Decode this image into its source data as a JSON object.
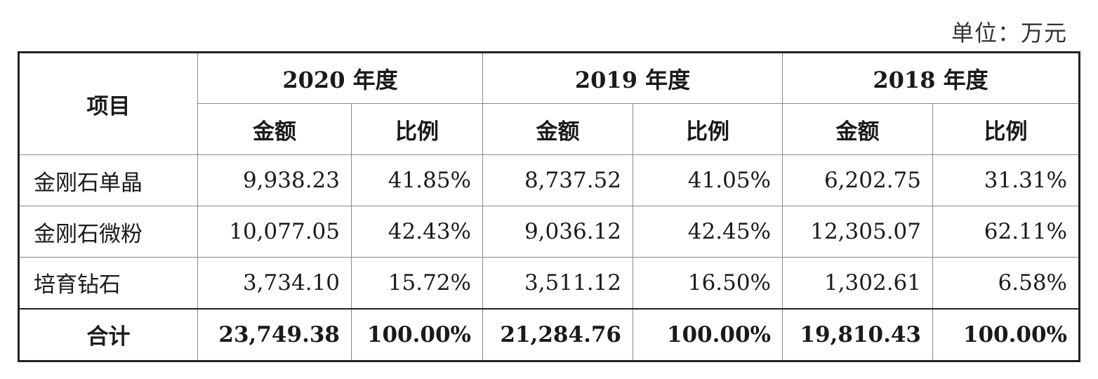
{
  "unit_note": "单位：万元",
  "header": {
    "item": "项目",
    "years": [
      "2020 年度",
      "2019 年度",
      "2018 年度"
    ],
    "amount": "金额",
    "ratio": "比例"
  },
  "rows": [
    {
      "label": "金刚石单晶",
      "values": [
        "9,938.23",
        "41.85%",
        "8,737.52",
        "41.05%",
        "6,202.75",
        "31.31%"
      ]
    },
    {
      "label": "金刚石微粉",
      "values": [
        "10,077.05",
        "42.43%",
        "9,036.12",
        "42.45%",
        "12,305.07",
        "62.11%"
      ]
    },
    {
      "label": "培育钻石",
      "values": [
        "3,734.10",
        "15.72%",
        "3,511.12",
        "16.50%",
        "1,302.61",
        "6.58%"
      ]
    }
  ],
  "total": {
    "label": "合计",
    "values": [
      "23,749.38",
      "100.00%",
      "21,284.76",
      "100.00%",
      "19,810.43",
      "100.00%"
    ]
  }
}
